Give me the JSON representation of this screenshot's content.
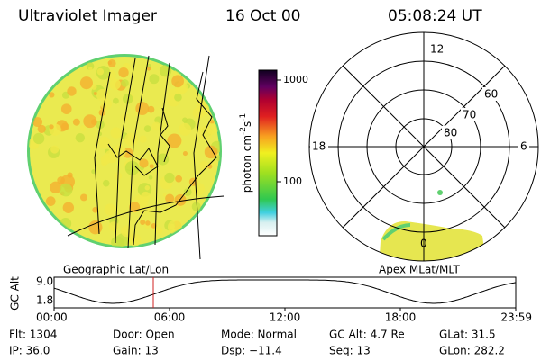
{
  "header": {
    "title": "Ultraviolet Imager",
    "date": "16 Oct 00",
    "time": "05:08:24 UT"
  },
  "left_panel": {
    "label": "Geographic Lat/Lon"
  },
  "colorbar": {
    "ticks": [
      "1000",
      "100"
    ],
    "unit": "photon cm",
    "exp1": "-2",
    "s": "s",
    "exp2": "-1"
  },
  "polar": {
    "label": "Apex MLat/MLT",
    "mlt": {
      "top": "12",
      "left": "18",
      "right": "6",
      "bottom": "0"
    },
    "lat": [
      "60",
      "70",
      "80"
    ]
  },
  "altitude_plot": {
    "ylabel": "GC Alt",
    "yticks": [
      "9.0",
      "1.8"
    ],
    "xticks": [
      "00:00",
      "06:00",
      "12:00",
      "18:00",
      "23:59"
    ]
  },
  "footer": {
    "rows": [
      [
        "Flt: 1304",
        "Door: Open",
        "Mode: Normal",
        "GC Alt: 4.7 Re",
        "GLat: 31.5"
      ],
      [
        "IP: 36.0",
        "Gain: 13",
        "Dsp: −11.4",
        "Seq: 13",
        "GLon: 282.2"
      ]
    ]
  }
}
